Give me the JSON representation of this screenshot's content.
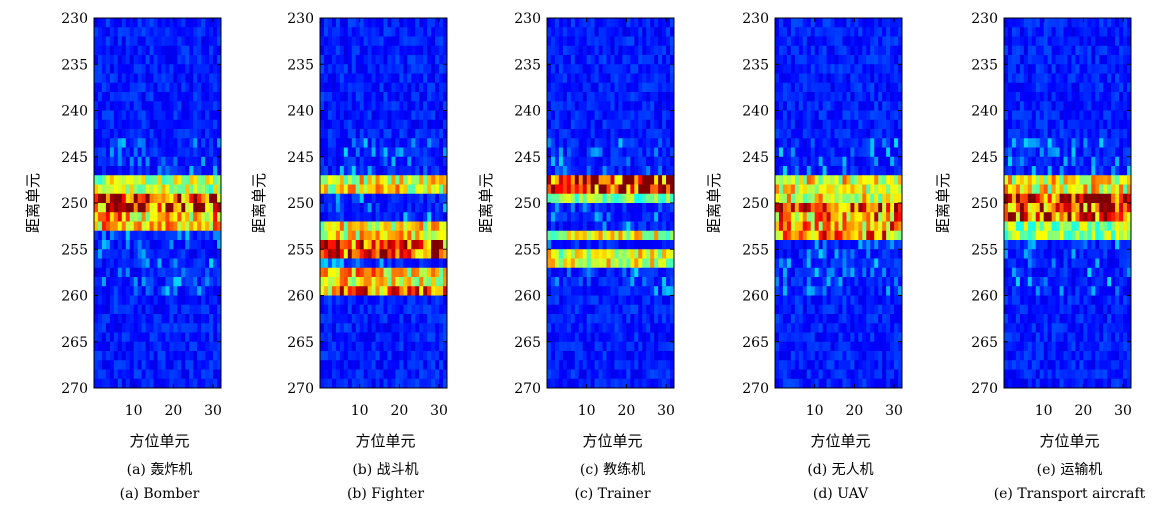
{
  "figure": {
    "type": "heatmap",
    "x_ticks": [
      10,
      20,
      30
    ],
    "y_ticks": [
      230,
      235,
      240,
      245,
      250,
      255,
      260,
      265,
      270
    ],
    "xlabel": "方位单元",
    "ylabel": "距离单元"
  },
  "chart_data": [
    {
      "type": "heatmap",
      "caption_cn": "(a) 轰炸机",
      "caption_en": "(a) Bomber",
      "xlabel": "方位单元",
      "ylabel": "距离单元",
      "xlim": [
        0,
        32
      ],
      "ylim": [
        230,
        270
      ],
      "x_ticks": [
        10,
        20,
        30
      ],
      "y_ticks": [
        230,
        235,
        240,
        245,
        250,
        255,
        260,
        265,
        270
      ],
      "bands": [
        {
          "rows": [
            247,
            248
          ],
          "intensity": 0.45
        },
        {
          "rows": [
            249,
            250
          ],
          "intensity": 0.9
        },
        {
          "rows": [
            251,
            252
          ],
          "intensity": 0.65
        }
      ]
    },
    {
      "type": "heatmap",
      "caption_cn": "(b) 战斗机",
      "caption_en": "(b) Fighter",
      "xlabel": "方位单元",
      "ylabel": "距离单元",
      "xlim": [
        0,
        32
      ],
      "ylim": [
        230,
        270
      ],
      "x_ticks": [
        10,
        20,
        30
      ],
      "y_ticks": [
        230,
        235,
        240,
        245,
        250,
        255,
        260,
        265,
        270
      ],
      "bands": [
        {
          "rows": [
            247,
            248
          ],
          "intensity": 0.55
        },
        {
          "rows": [
            252,
            253
          ],
          "intensity": 0.55
        },
        {
          "rows": [
            254,
            255
          ],
          "intensity": 0.85
        },
        {
          "rows": [
            257,
            258
          ],
          "intensity": 0.6
        },
        {
          "rows": [
            259,
            259
          ],
          "intensity": 0.75
        }
      ]
    },
    {
      "type": "heatmap",
      "caption_cn": "(c) 教练机",
      "caption_en": "(c) Trainer",
      "xlabel": "方位单元",
      "ylabel": "距离单元",
      "xlim": [
        0,
        32
      ],
      "ylim": [
        230,
        270
      ],
      "x_ticks": [
        10,
        20,
        30
      ],
      "y_ticks": [
        230,
        235,
        240,
        245,
        250,
        255,
        260,
        265,
        270
      ],
      "bands": [
        {
          "rows": [
            247,
            248
          ],
          "intensity": 0.95
        },
        {
          "rows": [
            249,
            249
          ],
          "intensity": 0.35
        },
        {
          "rows": [
            253,
            253
          ],
          "intensity": 0.5
        },
        {
          "rows": [
            255,
            256
          ],
          "intensity": 0.5
        }
      ]
    },
    {
      "type": "heatmap",
      "caption_cn": "(d) 无人机",
      "caption_en": "(d) UAV",
      "xlabel": "方位单元",
      "ylabel": "距离单元",
      "xlim": [
        0,
        32
      ],
      "ylim": [
        230,
        270
      ],
      "x_ticks": [
        10,
        20,
        30
      ],
      "y_ticks": [
        230,
        235,
        240,
        245,
        250,
        255,
        260,
        265,
        270
      ],
      "bands": [
        {
          "rows": [
            247,
            249
          ],
          "intensity": 0.55
        },
        {
          "rows": [
            250,
            250
          ],
          "intensity": 0.85
        },
        {
          "rows": [
            251,
            253
          ],
          "intensity": 0.7
        }
      ]
    },
    {
      "type": "heatmap",
      "caption_cn": "(e) 运输机",
      "caption_en": "(e) Transport aircraft",
      "xlabel": "方位单元",
      "ylabel": "距离单元",
      "xlim": [
        0,
        32
      ],
      "ylim": [
        230,
        270
      ],
      "x_ticks": [
        10,
        20,
        30
      ],
      "y_ticks": [
        230,
        235,
        240,
        245,
        250,
        255,
        260,
        265,
        270
      ],
      "bands": [
        {
          "rows": [
            247,
            248
          ],
          "intensity": 0.55
        },
        {
          "rows": [
            249,
            251
          ],
          "intensity": 0.9
        },
        {
          "rows": [
            252,
            253
          ],
          "intensity": 0.4
        }
      ]
    }
  ]
}
